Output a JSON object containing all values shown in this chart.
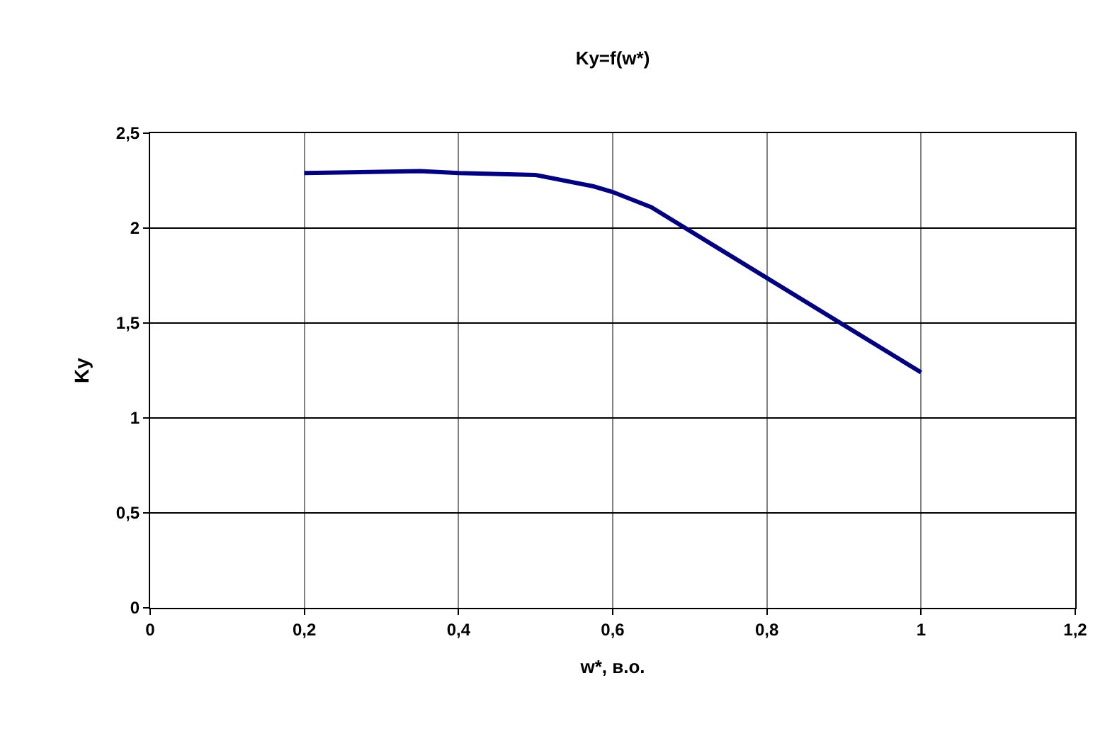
{
  "chart_data": {
    "type": "line",
    "title": "Ky=f(w*)",
    "xlabel": "w*, в.о.",
    "ylabel": "Ky",
    "x": [
      0.2,
      0.35,
      0.4,
      0.5,
      0.575,
      0.6,
      0.65,
      1.0
    ],
    "series": [
      {
        "color": "#000080",
        "values": [
          2.29,
          2.3,
          2.29,
          2.28,
          2.22,
          2.19,
          2.11,
          1.24
        ]
      }
    ],
    "xlim": [
      0,
      1.2
    ],
    "xticks": [
      0,
      {
        "value": 0.2,
        "label": "0,2"
      },
      {
        "value": 0.4,
        "label": "0,4"
      },
      {
        "value": 0.6,
        "label": "0,6"
      },
      {
        "value": 0.8,
        "label": "0,8"
      },
      1,
      {
        "value": 1.2,
        "label": "1,2"
      }
    ],
    "ylim": [
      0,
      2.5
    ],
    "yticks": [
      0,
      {
        "value": 0.5,
        "label": "0,5"
      },
      1,
      {
        "value": 1.5,
        "label": "1,5"
      },
      2,
      {
        "value": 2.5,
        "label": "2,5"
      }
    ],
    "grid": true,
    "marker": "none",
    "line_style": "solid"
  }
}
